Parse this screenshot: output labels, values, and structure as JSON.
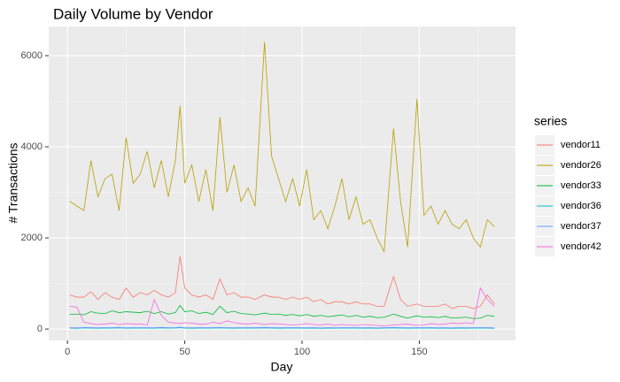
{
  "chart_data": {
    "type": "line",
    "title": "Daily Volume by Vendor",
    "x_label": "Day",
    "y_label": "# Transactions",
    "legend_title": "series",
    "legend_position": "right",
    "grid": true,
    "x": [
      1,
      4,
      7,
      10,
      13,
      16,
      19,
      22,
      25,
      28,
      31,
      34,
      37,
      40,
      43,
      46,
      48,
      50,
      53,
      56,
      59,
      62,
      65,
      68,
      71,
      74,
      77,
      80,
      84,
      87,
      90,
      93,
      96,
      99,
      102,
      105,
      108,
      111,
      114,
      117,
      120,
      123,
      126,
      129,
      132,
      135,
      139,
      142,
      145,
      149,
      152,
      155,
      158,
      161,
      164,
      167,
      170,
      173,
      176,
      179,
      182
    ],
    "xlim": [
      -8,
      191
    ],
    "xticks": [
      0,
      50,
      100,
      150
    ],
    "ylim": [
      -250,
      6640
    ],
    "yticks": [
      0,
      2000,
      4000,
      6000
    ],
    "series": [
      {
        "name": "vendor11",
        "color": "#F8766D",
        "values": [
          750,
          700,
          700,
          820,
          650,
          800,
          700,
          650,
          900,
          700,
          800,
          750,
          850,
          750,
          700,
          800,
          1600,
          900,
          750,
          700,
          750,
          650,
          1100,
          750,
          800,
          700,
          700,
          650,
          750,
          700,
          700,
          650,
          700,
          650,
          700,
          600,
          650,
          550,
          600,
          600,
          550,
          600,
          550,
          550,
          500,
          500,
          1150,
          650,
          500,
          550,
          500,
          500,
          500,
          550,
          450,
          500,
          500,
          450,
          500,
          750,
          550
        ]
      },
      {
        "name": "vendor26",
        "color": "#B79F00",
        "values": [
          2800,
          2700,
          2600,
          3700,
          2900,
          3300,
          3400,
          2600,
          4200,
          3200,
          3400,
          3900,
          3100,
          3700,
          2900,
          3700,
          4900,
          3200,
          3600,
          2800,
          3500,
          2600,
          4650,
          3000,
          3600,
          2800,
          3100,
          2700,
          6300,
          3800,
          3300,
          2800,
          3300,
          2700,
          3500,
          2400,
          2600,
          2200,
          2700,
          3300,
          2400,
          2900,
          2300,
          2400,
          2000,
          1700,
          4400,
          2800,
          1800,
          5050,
          2500,
          2700,
          2300,
          2600,
          2300,
          2200,
          2400,
          2000,
          1800,
          2400,
          2250
        ]
      },
      {
        "name": "vendor33",
        "color": "#00BA38",
        "values": [
          320,
          330,
          310,
          380,
          350,
          340,
          400,
          360,
          380,
          370,
          360,
          390,
          340,
          380,
          330,
          360,
          520,
          380,
          400,
          340,
          370,
          320,
          500,
          360,
          390,
          340,
          330,
          310,
          350,
          320,
          330,
          300,
          320,
          290,
          320,
          280,
          300,
          270,
          290,
          310,
          270,
          300,
          260,
          280,
          250,
          260,
          330,
          280,
          240,
          290,
          260,
          270,
          250,
          280,
          240,
          250,
          260,
          230,
          240,
          300,
          280
        ]
      },
      {
        "name": "vendor36",
        "color": "#00BFC4",
        "values": [
          20,
          15,
          25,
          20,
          18,
          22,
          20,
          25,
          18,
          20,
          22,
          20,
          18,
          25,
          20,
          22,
          30,
          20,
          18,
          20,
          22,
          20,
          25,
          20,
          18,
          20,
          22,
          20,
          25,
          20,
          18,
          20,
          22,
          20,
          18,
          20,
          15,
          20,
          18,
          20,
          22,
          20,
          18,
          20,
          15,
          20,
          25,
          20,
          18,
          20,
          22,
          20,
          18,
          20,
          15,
          20,
          18,
          20,
          22,
          20,
          15
        ]
      },
      {
        "name": "vendor37",
        "color": "#619CFF",
        "values": [
          30,
          25,
          35,
          30,
          28,
          32,
          30,
          35,
          28,
          30,
          32,
          30,
          28,
          35,
          30,
          32,
          40,
          30,
          28,
          30,
          32,
          30,
          35,
          30,
          28,
          30,
          32,
          30,
          35,
          30,
          28,
          30,
          32,
          30,
          28,
          30,
          25,
          30,
          28,
          30,
          32,
          30,
          28,
          30,
          25,
          30,
          35,
          30,
          28,
          30,
          32,
          30,
          28,
          30,
          25,
          30,
          28,
          30,
          32,
          30,
          25
        ]
      },
      {
        "name": "vendor42",
        "color": "#F564E3",
        "values": [
          500,
          480,
          150,
          120,
          100,
          110,
          130,
          100,
          120,
          110,
          110,
          90,
          650,
          300,
          150,
          130,
          120,
          140,
          130,
          110,
          110,
          150,
          120,
          180,
          140,
          120,
          110,
          130,
          100,
          120,
          110,
          100,
          90,
          100,
          120,
          100,
          90,
          110,
          80,
          100,
          90,
          80,
          100,
          90,
          80,
          70,
          90,
          100,
          110,
          80,
          90,
          120,
          100,
          110,
          130,
          120,
          140,
          120,
          900,
          650,
          500
        ]
      }
    ]
  }
}
